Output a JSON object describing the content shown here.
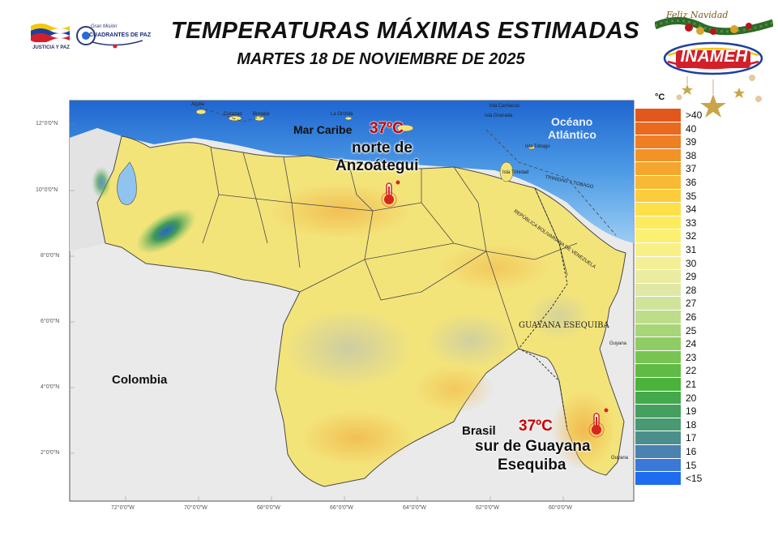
{
  "header": {
    "title": "TEMPERATURAS MÁXIMAS ESTIMADAS",
    "subtitle": "MARTES 18 DE NOVIEMBRE  DE 2025"
  },
  "logos": {
    "justicia_label": "JUSTICIA Y PAZ",
    "gran_mision_line1": "Gran Misión",
    "gran_mision_line2": "CUADRANTES DE PAZ",
    "greeting": "Feliz Navidad",
    "inameh": "INAMEH"
  },
  "map_labels": {
    "sea": "Mar Caribe",
    "ocean_line1": "Océano",
    "ocean_line2": "Atlántico",
    "colombia": "Colombia",
    "brasil": "Brasil",
    "guayana_esequiba": "GUAYANA ESEQUIBA",
    "aruba": "Aruba",
    "curacao": "Curazao",
    "bonaire": "Bonaire",
    "la_orchila": "La Orchila",
    "carriacou": "Isla Carriacou",
    "granada": "Isla Granada",
    "tobago": "Isla Tobago",
    "trinidad": "Isla Trinidad",
    "trinidad_tobago": "TRINIDAD Y TOBAGO",
    "rep_bolivariana": "REPÚBLICA BOLIVARIANA DE VENEZUELA",
    "guyana_1": "Guyana",
    "guyana_2": "Guyana"
  },
  "annotations": [
    {
      "temp": "37ºC",
      "line1": "norte de",
      "line2": "Anzoátegui"
    },
    {
      "temp": "37ºC",
      "line1": "sur de Guayana",
      "line2": "Esequiba"
    }
  ],
  "axes": {
    "lat_labels": [
      "12°0'0\"N",
      "10°0'0\"N",
      "8°0'0\"N",
      "6°0'0\"N",
      "4°0'0\"N",
      "2°0'0\"N"
    ],
    "lon_labels": [
      "72°0'0\"W",
      "70°0'0\"W",
      "68°0'0\"W",
      "66°0'0\"W",
      "64°0'0\"W",
      "62°0'0\"W",
      "60°0'0\"W"
    ]
  },
  "legend": {
    "unit": "°C",
    "entries": [
      {
        "label": ">40",
        "color": "#e2571c"
      },
      {
        "label": "40",
        "color": "#e96a1e"
      },
      {
        "label": "39",
        "color": "#ee7f22"
      },
      {
        "label": "38",
        "color": "#f29328"
      },
      {
        "label": "37",
        "color": "#f5a62e"
      },
      {
        "label": "36",
        "color": "#f8b934"
      },
      {
        "label": "35",
        "color": "#fbcd3c"
      },
      {
        "label": "34",
        "color": "#fde048"
      },
      {
        "label": "33",
        "color": "#fdeb5e"
      },
      {
        "label": "32",
        "color": "#fcef72"
      },
      {
        "label": "31",
        "color": "#f8f086"
      },
      {
        "label": "30",
        "color": "#f3ef96"
      },
      {
        "label": "29",
        "color": "#eaeca2"
      },
      {
        "label": "28",
        "color": "#dfe8a4"
      },
      {
        "label": "27",
        "color": "#cfe39a"
      },
      {
        "label": "26",
        "color": "#bddd8a"
      },
      {
        "label": "25",
        "color": "#a7d578"
      },
      {
        "label": "24",
        "color": "#8fcd64"
      },
      {
        "label": "23",
        "color": "#77c452"
      },
      {
        "label": "22",
        "color": "#5fbb44"
      },
      {
        "label": "21",
        "color": "#4bb23c"
      },
      {
        "label": "20",
        "color": "#43a94a"
      },
      {
        "label": "19",
        "color": "#44a05c"
      },
      {
        "label": "18",
        "color": "#489a72"
      },
      {
        "label": "17",
        "color": "#4b8f8c"
      },
      {
        "label": "16",
        "color": "#4a82b0"
      },
      {
        "label": "15",
        "color": "#3b78d8"
      },
      {
        "label": "<15",
        "color": "#1f6cf0"
      }
    ]
  },
  "colors": {
    "sea_deep": "#2f86e0",
    "sea_light": "#8fc4f0",
    "land_base": "#f3e47a",
    "land_warm": "#edc862",
    "colombia_bg": "#e9e9e9",
    "brasil_bg": "#eaeaea",
    "border": "#444444",
    "thermometer": "#d8261d"
  },
  "icons": [
    "thermometer-icon",
    "flag-icon",
    "star-ornament-icon"
  ]
}
